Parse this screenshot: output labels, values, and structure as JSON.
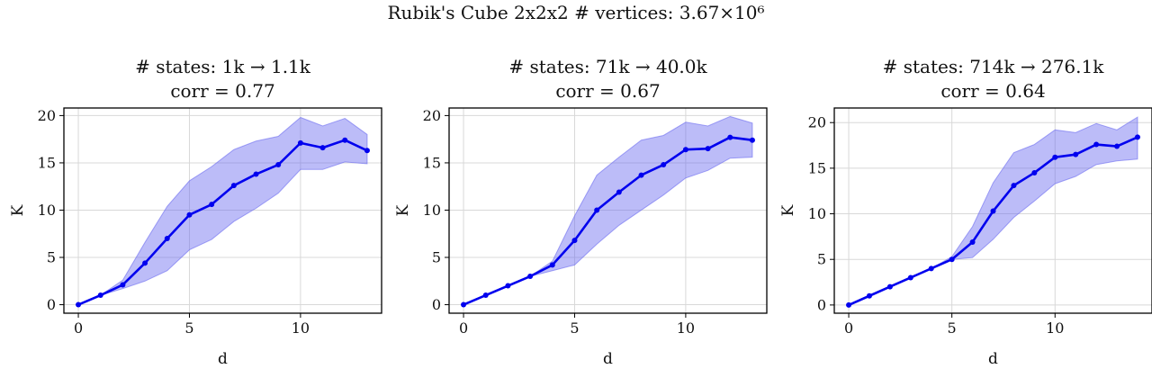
{
  "figure": {
    "suptitle": "Rubik's Cube 2x2x2 # vertices: 3.67×10⁶"
  },
  "colors": {
    "line": "#0000ee",
    "band": "#6a6af0",
    "grid": "#d8d8d8"
  },
  "chart_data": [
    {
      "type": "line",
      "title_line1": "# states: 1k → 1.1k",
      "title_line2": "corr = 0.77",
      "xlabel": "d",
      "ylabel": "K",
      "xlim": [
        -0.65,
        13.65
      ],
      "ylim": [
        -0.9,
        20.8
      ],
      "xticks": [
        0,
        5,
        10
      ],
      "yticks": [
        0,
        5,
        10,
        15,
        20
      ],
      "grid": true,
      "x": [
        0,
        1,
        2,
        3,
        4,
        5,
        6,
        7,
        8,
        9,
        10,
        11,
        12,
        13
      ],
      "mean": [
        0,
        1,
        2.1,
        4.4,
        7.0,
        9.5,
        10.6,
        12.6,
        13.8,
        14.8,
        17.1,
        16.6,
        17.4,
        16.3
      ],
      "lower": [
        0,
        1,
        1.7,
        2.5,
        3.6,
        5.8,
        6.9,
        8.8,
        10.2,
        11.8,
        14.3,
        14.3,
        15.1,
        14.9
      ],
      "upper": [
        0,
        1,
        2.6,
        6.6,
        10.4,
        13.1,
        14.6,
        16.4,
        17.3,
        17.8,
        19.8,
        18.9,
        19.7,
        18.0
      ]
    },
    {
      "type": "line",
      "title_line1": "# states: 71k → 40.0k",
      "title_line2": "corr = 0.67",
      "xlabel": "d",
      "ylabel": "K",
      "xlim": [
        -0.65,
        13.65
      ],
      "ylim": [
        -0.9,
        20.8
      ],
      "xticks": [
        0,
        5,
        10
      ],
      "yticks": [
        0,
        5,
        10,
        15,
        20
      ],
      "grid": true,
      "x": [
        0,
        1,
        2,
        3,
        4,
        5,
        6,
        7,
        8,
        9,
        10,
        11,
        12,
        13
      ],
      "mean": [
        0,
        1,
        2,
        3,
        4.2,
        6.8,
        10,
        11.9,
        13.7,
        14.8,
        16.4,
        16.5,
        17.7,
        17.4
      ],
      "lower": [
        0,
        1,
        2,
        3,
        3.6,
        4.2,
        6.4,
        8.4,
        10,
        11.6,
        13.4,
        14.2,
        15.5,
        15.6
      ],
      "upper": [
        0,
        1,
        2,
        3,
        4.6,
        9.4,
        13.7,
        15.6,
        17.4,
        17.9,
        19.3,
        18.9,
        19.9,
        19.2
      ]
    },
    {
      "type": "line",
      "title_line1": "# states: 714k → 276.1k",
      "title_line2": "corr = 0.64",
      "xlabel": "d",
      "ylabel": "K",
      "xlim": [
        -0.7,
        14.7
      ],
      "ylim": [
        -0.9,
        21.6
      ],
      "xticks": [
        0,
        5,
        10
      ],
      "yticks": [
        0,
        5,
        10,
        15,
        20
      ],
      "grid": true,
      "x": [
        0,
        1,
        2,
        3,
        4,
        5,
        6,
        7,
        8,
        9,
        10,
        11,
        12,
        13,
        14
      ],
      "mean": [
        0,
        1,
        2,
        3,
        4,
        5,
        6.9,
        10.3,
        13.1,
        14.5,
        16.2,
        16.5,
        17.6,
        17.4,
        18.4
      ],
      "lower": [
        0,
        1,
        2,
        3,
        4,
        5,
        5.2,
        7.2,
        9.6,
        11.4,
        13.3,
        14.1,
        15.4,
        15.8,
        16.0
      ],
      "upper": [
        0,
        1,
        2,
        3,
        4,
        5.3,
        8.6,
        13.4,
        16.7,
        17.6,
        19.2,
        18.9,
        19.9,
        19.2,
        20.6
      ]
    }
  ]
}
